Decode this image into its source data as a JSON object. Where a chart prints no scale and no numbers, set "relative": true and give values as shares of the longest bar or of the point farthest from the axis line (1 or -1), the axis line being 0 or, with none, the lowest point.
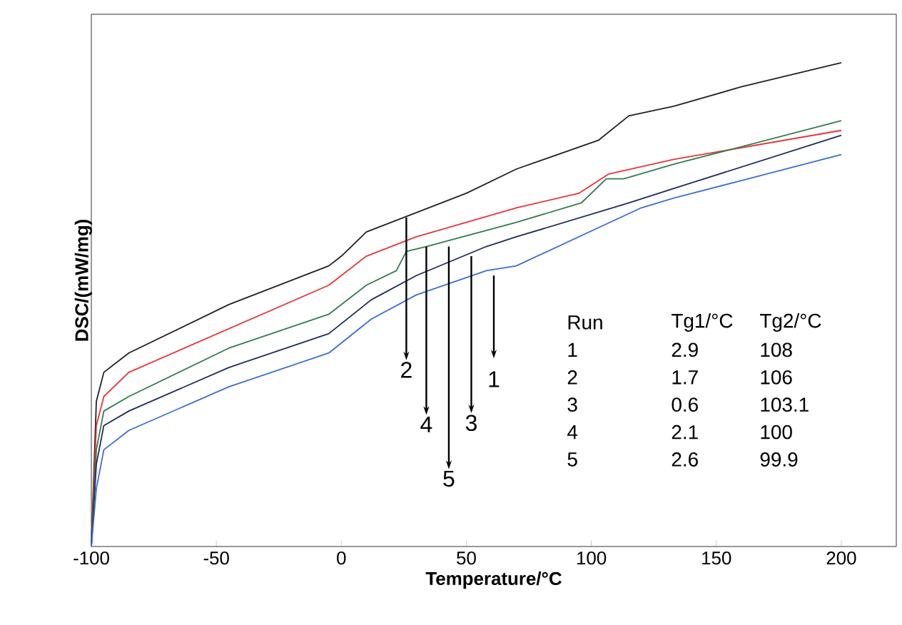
{
  "chart_data": {
    "type": "line",
    "xlabel": "Temperature/°C",
    "ylabel": "DSC/(mW/mg)",
    "relative": true,
    "xlim": [
      -100,
      222
    ],
    "xticks": [
      -100,
      -50,
      0,
      50,
      100,
      150,
      200
    ],
    "grid": false,
    "marker": "none",
    "line_style": "solid",
    "series": [
      {
        "color": "#222222",
        "x": [
          -100,
          -98,
          -95,
          -85,
          -45,
          -5,
          0,
          10,
          25,
          50,
          70,
          103,
          115,
          133,
          160,
          200
        ],
        "values": [
          0,
          0.3,
          0.36,
          0.4,
          0.5,
          0.58,
          0.6,
          0.65,
          0.68,
          0.73,
          0.78,
          0.84,
          0.89,
          0.91,
          0.95,
          1
        ]
      },
      {
        "color": "#e8343a",
        "x": [
          -100,
          -98,
          -95,
          -85,
          -45,
          -5,
          10,
          30,
          70,
          95,
          107,
          133,
          200
        ],
        "values": [
          0,
          0.25,
          0.31,
          0.36,
          0.45,
          0.54,
          0.6,
          0.64,
          0.7,
          0.73,
          0.77,
          0.8,
          0.86
        ]
      },
      {
        "color": "#2e7d4f",
        "x": [
          -100,
          -98,
          -95,
          -85,
          -45,
          -5,
          10,
          22,
          26,
          34,
          70,
          96,
          106,
          113,
          133,
          200
        ],
        "values": [
          0,
          0.2,
          0.28,
          0.31,
          0.41,
          0.48,
          0.54,
          0.57,
          0.61,
          0.62,
          0.67,
          0.71,
          0.76,
          0.76,
          0.79,
          0.88
        ]
      },
      {
        "color": "#1f2a5a",
        "x": [
          -100,
          -98,
          -95,
          -85,
          -45,
          -5,
          12,
          30,
          58,
          70,
          115,
          133,
          200
        ],
        "values": [
          0,
          0.17,
          0.25,
          0.28,
          0.37,
          0.44,
          0.51,
          0.56,
          0.62,
          0.64,
          0.71,
          0.74,
          0.85
        ]
      },
      {
        "color": "#3a6fd0",
        "x": [
          -100,
          -98,
          -95,
          -85,
          -45,
          -5,
          12,
          30,
          58,
          70,
          120,
          133,
          200
        ],
        "values": [
          0,
          0.12,
          0.2,
          0.24,
          0.33,
          0.4,
          0.47,
          0.52,
          0.57,
          0.58,
          0.7,
          0.72,
          0.81
        ]
      }
    ],
    "annotations": [
      {
        "text": "2",
        "x": 26,
        "y": 0.68
      },
      {
        "text": "4",
        "x": 34,
        "y": 0.62
      },
      {
        "text": "5",
        "x": 43,
        "y": 0.62
      },
      {
        "text": "3",
        "x": 52,
        "y": 0.6
      },
      {
        "text": "1",
        "x": 61,
        "y": 0.56
      },
      "Run",
      "Tg1/°C",
      "Tg2/°C",
      "1",
      "2.9",
      "108",
      "2",
      "1.7",
      "106",
      "3",
      "0.6",
      "103.1",
      "4",
      "2.1",
      "100",
      "5",
      "2.6",
      "99.9"
    ]
  }
}
